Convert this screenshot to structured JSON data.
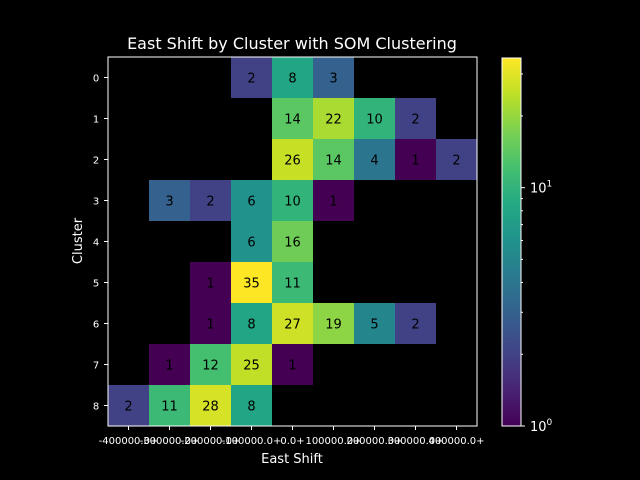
{
  "chart_data": {
    "type": "heatmap",
    "title": "East Shift by Cluster with SOM Clustering",
    "xlabel": "East Shift",
    "ylabel": "Cluster",
    "x_ticks": [
      "-400000.0+",
      "-300000.0+",
      "-200000.0+",
      "-100000.0+",
      "0.0+",
      "100000.0+",
      "200000.0+",
      "300000.0+",
      "400000.0+"
    ],
    "y_ticks": [
      "0",
      "1",
      "2",
      "3",
      "4",
      "5",
      "6",
      "7",
      "8"
    ],
    "cells": [
      {
        "row": 0,
        "col": 3,
        "value": 2
      },
      {
        "row": 0,
        "col": 4,
        "value": 8
      },
      {
        "row": 0,
        "col": 5,
        "value": 3
      },
      {
        "row": 1,
        "col": 4,
        "value": 14
      },
      {
        "row": 1,
        "col": 5,
        "value": 22
      },
      {
        "row": 1,
        "col": 6,
        "value": 10
      },
      {
        "row": 1,
        "col": 7,
        "value": 2
      },
      {
        "row": 2,
        "col": 4,
        "value": 26
      },
      {
        "row": 2,
        "col": 5,
        "value": 14
      },
      {
        "row": 2,
        "col": 6,
        "value": 4
      },
      {
        "row": 2,
        "col": 7,
        "value": 1
      },
      {
        "row": 2,
        "col": 8,
        "value": 2
      },
      {
        "row": 3,
        "col": 1,
        "value": 3
      },
      {
        "row": 3,
        "col": 2,
        "value": 2
      },
      {
        "row": 3,
        "col": 3,
        "value": 6
      },
      {
        "row": 3,
        "col": 4,
        "value": 10
      },
      {
        "row": 3,
        "col": 5,
        "value": 1
      },
      {
        "row": 4,
        "col": 3,
        "value": 6
      },
      {
        "row": 4,
        "col": 4,
        "value": 16
      },
      {
        "row": 5,
        "col": 2,
        "value": 1
      },
      {
        "row": 5,
        "col": 3,
        "value": 35
      },
      {
        "row": 5,
        "col": 4,
        "value": 11
      },
      {
        "row": 6,
        "col": 2,
        "value": 1
      },
      {
        "row": 6,
        "col": 3,
        "value": 8
      },
      {
        "row": 6,
        "col": 4,
        "value": 27
      },
      {
        "row": 6,
        "col": 5,
        "value": 19
      },
      {
        "row": 6,
        "col": 6,
        "value": 5
      },
      {
        "row": 6,
        "col": 7,
        "value": 2
      },
      {
        "row": 7,
        "col": 1,
        "value": 1
      },
      {
        "row": 7,
        "col": 2,
        "value": 12
      },
      {
        "row": 7,
        "col": 3,
        "value": 25
      },
      {
        "row": 7,
        "col": 4,
        "value": 1
      },
      {
        "row": 8,
        "col": 0,
        "value": 2
      },
      {
        "row": 8,
        "col": 1,
        "value": 11
      },
      {
        "row": 8,
        "col": 2,
        "value": 28
      },
      {
        "row": 8,
        "col": 3,
        "value": 8
      }
    ],
    "colorbar": {
      "scale": "log",
      "colormap": "viridis",
      "range": [
        1,
        35
      ],
      "tick_labels": [
        "10^0",
        "10^1"
      ]
    },
    "background_color": "#000000"
  }
}
